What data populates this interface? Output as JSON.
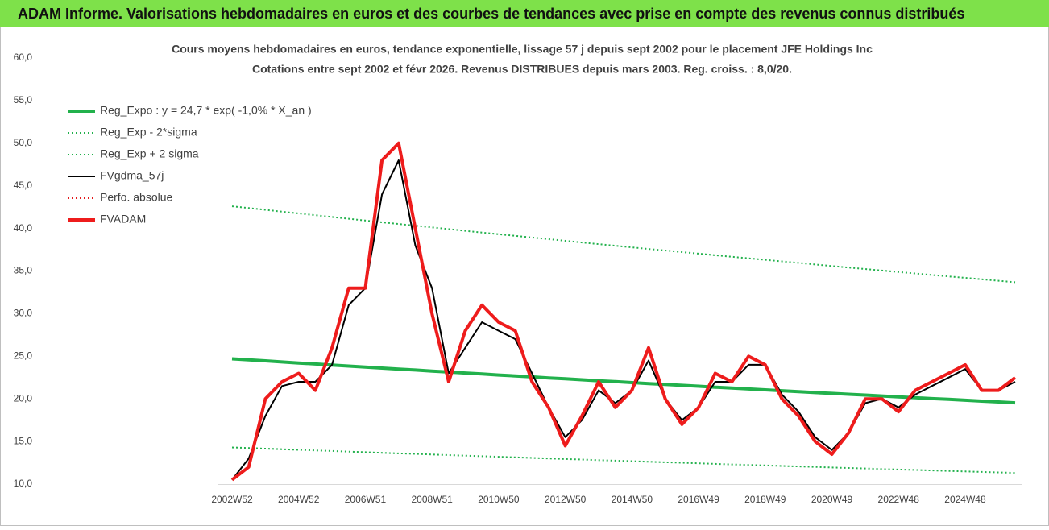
{
  "banner": {
    "title": "ADAM Informe. Valorisations hebdomadaires en euros et des courbes de tendances avec prise en compte des revenus connus distribués"
  },
  "chart_data": {
    "type": "line",
    "title": "Cours moyens hebdomadaires en euros, tendance exponentielle, lissage 57 j depuis sept 2002 pour le placement JFE Holdings Inc",
    "subtitle": "Cotations entre sept 2002 et févr 2026. Revenus DISTRIBUES depuis mars 2003. Reg. croiss. : 8,0/20.",
    "categories": [
      "2002W52",
      null,
      null,
      null,
      "2004W52",
      null,
      null,
      null,
      "2006W51",
      null,
      null,
      null,
      "2008W51",
      null,
      null,
      null,
      "2010W50",
      null,
      null,
      null,
      "2012W50",
      null,
      null,
      null,
      "2014W50",
      null,
      null,
      null,
      "2016W49",
      null,
      null,
      null,
      "2018W49",
      null,
      null,
      null,
      "2020W49",
      null,
      null,
      null,
      "2022W48",
      null,
      null,
      null,
      "2024W48",
      null,
      null,
      null
    ],
    "ylim": [
      10,
      60
    ],
    "yticks": [
      {
        "value": 10,
        "label": "10,0"
      },
      {
        "value": 15,
        "label": "15,0"
      },
      {
        "value": 20,
        "label": "20,0"
      },
      {
        "value": 25,
        "label": "25,0"
      },
      {
        "value": 30,
        "label": "30,0"
      },
      {
        "value": 35,
        "label": "35,0"
      },
      {
        "value": 40,
        "label": "40,0"
      },
      {
        "value": 45,
        "label": "45,0"
      },
      {
        "value": 50,
        "label": "50,0"
      },
      {
        "value": 55,
        "label": "55,0"
      },
      {
        "value": 60,
        "label": "60,0"
      }
    ],
    "grid": false,
    "legend": "upper left",
    "series": [
      {
        "name": "Reg_Expo : y = 24,7 * exp( -1,0% *  X_an )",
        "color": "#22b14c",
        "style": "thick",
        "values": [
          24.7,
          24.58,
          24.46,
          24.33,
          24.21,
          24.09,
          23.97,
          23.85,
          23.73,
          23.61,
          23.5,
          23.38,
          23.26,
          23.15,
          23.03,
          22.92,
          22.8,
          22.69,
          22.58,
          22.46,
          22.35,
          22.24,
          22.13,
          22.02,
          21.91,
          21.8,
          21.69,
          21.59,
          21.48,
          21.37,
          21.27,
          21.16,
          21.06,
          20.95,
          20.85,
          20.74,
          20.64,
          20.54,
          20.44,
          20.34,
          20.23,
          20.13,
          20.03,
          19.94,
          19.84,
          19.74,
          19.64,
          19.54
        ]
      },
      {
        "name": "Reg_Exp - 2*sigma",
        "color": "#22b14c",
        "style": "dotted",
        "values": [
          14.3,
          14.23,
          14.16,
          14.09,
          14.02,
          13.95,
          13.88,
          13.81,
          13.74,
          13.67,
          13.6,
          13.54,
          13.47,
          13.4,
          13.34,
          13.27,
          13.2,
          13.14,
          13.07,
          13.01,
          12.94,
          12.88,
          12.81,
          12.75,
          12.69,
          12.62,
          12.56,
          12.5,
          12.44,
          12.37,
          12.31,
          12.25,
          12.19,
          12.13,
          12.07,
          12.01,
          11.95,
          11.89,
          11.83,
          11.77,
          11.71,
          11.66,
          11.6,
          11.54,
          11.48,
          11.43,
          11.37,
          11.31
        ]
      },
      {
        "name": "Reg_Exp + 2 sigma",
        "color": "#22b14c",
        "style": "dotted",
        "values": [
          42.6,
          42.39,
          42.18,
          41.97,
          41.76,
          41.55,
          41.34,
          41.13,
          40.93,
          40.72,
          40.52,
          40.32,
          40.12,
          39.92,
          39.72,
          39.52,
          39.32,
          39.13,
          38.93,
          38.74,
          38.54,
          38.35,
          38.16,
          37.97,
          37.78,
          37.59,
          37.41,
          37.22,
          37.04,
          36.85,
          36.67,
          36.49,
          36.31,
          36.13,
          35.95,
          35.77,
          35.59,
          35.41,
          35.24,
          35.06,
          34.89,
          34.72,
          34.54,
          34.37,
          34.2,
          34.03,
          33.86,
          33.69
        ]
      },
      {
        "name": "FVgdma_57j",
        "color": "#000000",
        "style": "solid",
        "values": [
          10.5,
          13,
          18,
          21.5,
          22,
          22,
          24,
          31,
          33,
          44,
          48,
          38,
          33,
          23,
          26,
          29,
          28,
          27,
          23,
          19,
          15.5,
          17.5,
          21,
          19.5,
          21,
          24.5,
          20,
          17.5,
          19,
          22,
          22,
          24,
          24,
          20.5,
          18.5,
          15.5,
          14,
          16,
          19.5,
          20,
          19,
          20.5,
          21.5,
          22.5,
          23.5,
          21,
          21,
          22
        ]
      },
      {
        "name": "Perfo. absolue",
        "color": "#e41a1c",
        "style": "dotted",
        "values": [
          null,
          null,
          null,
          null,
          null,
          null,
          null,
          null,
          null,
          null,
          null,
          null,
          null,
          null,
          null,
          null,
          null,
          null,
          null,
          null,
          null,
          null,
          null,
          null,
          null,
          null,
          null,
          null,
          null,
          null,
          null,
          null,
          null,
          null,
          null,
          null,
          null,
          null,
          null,
          null,
          null,
          null,
          null,
          null,
          null,
          null,
          null,
          null
        ]
      },
      {
        "name": "FVADAM",
        "color": "#ee1c1c",
        "style": "thick",
        "values": [
          10.5,
          12,
          20,
          22,
          23,
          21,
          26,
          33,
          33,
          48,
          50,
          40,
          30,
          22,
          28,
          31,
          29,
          28,
          22,
          19,
          14.5,
          18,
          22,
          19,
          21,
          26,
          20,
          17,
          19,
          23,
          22,
          25,
          24,
          20,
          18,
          15,
          13.5,
          16,
          20,
          20,
          18.5,
          21,
          22,
          23,
          24,
          21,
          21,
          22.5
        ]
      }
    ]
  }
}
